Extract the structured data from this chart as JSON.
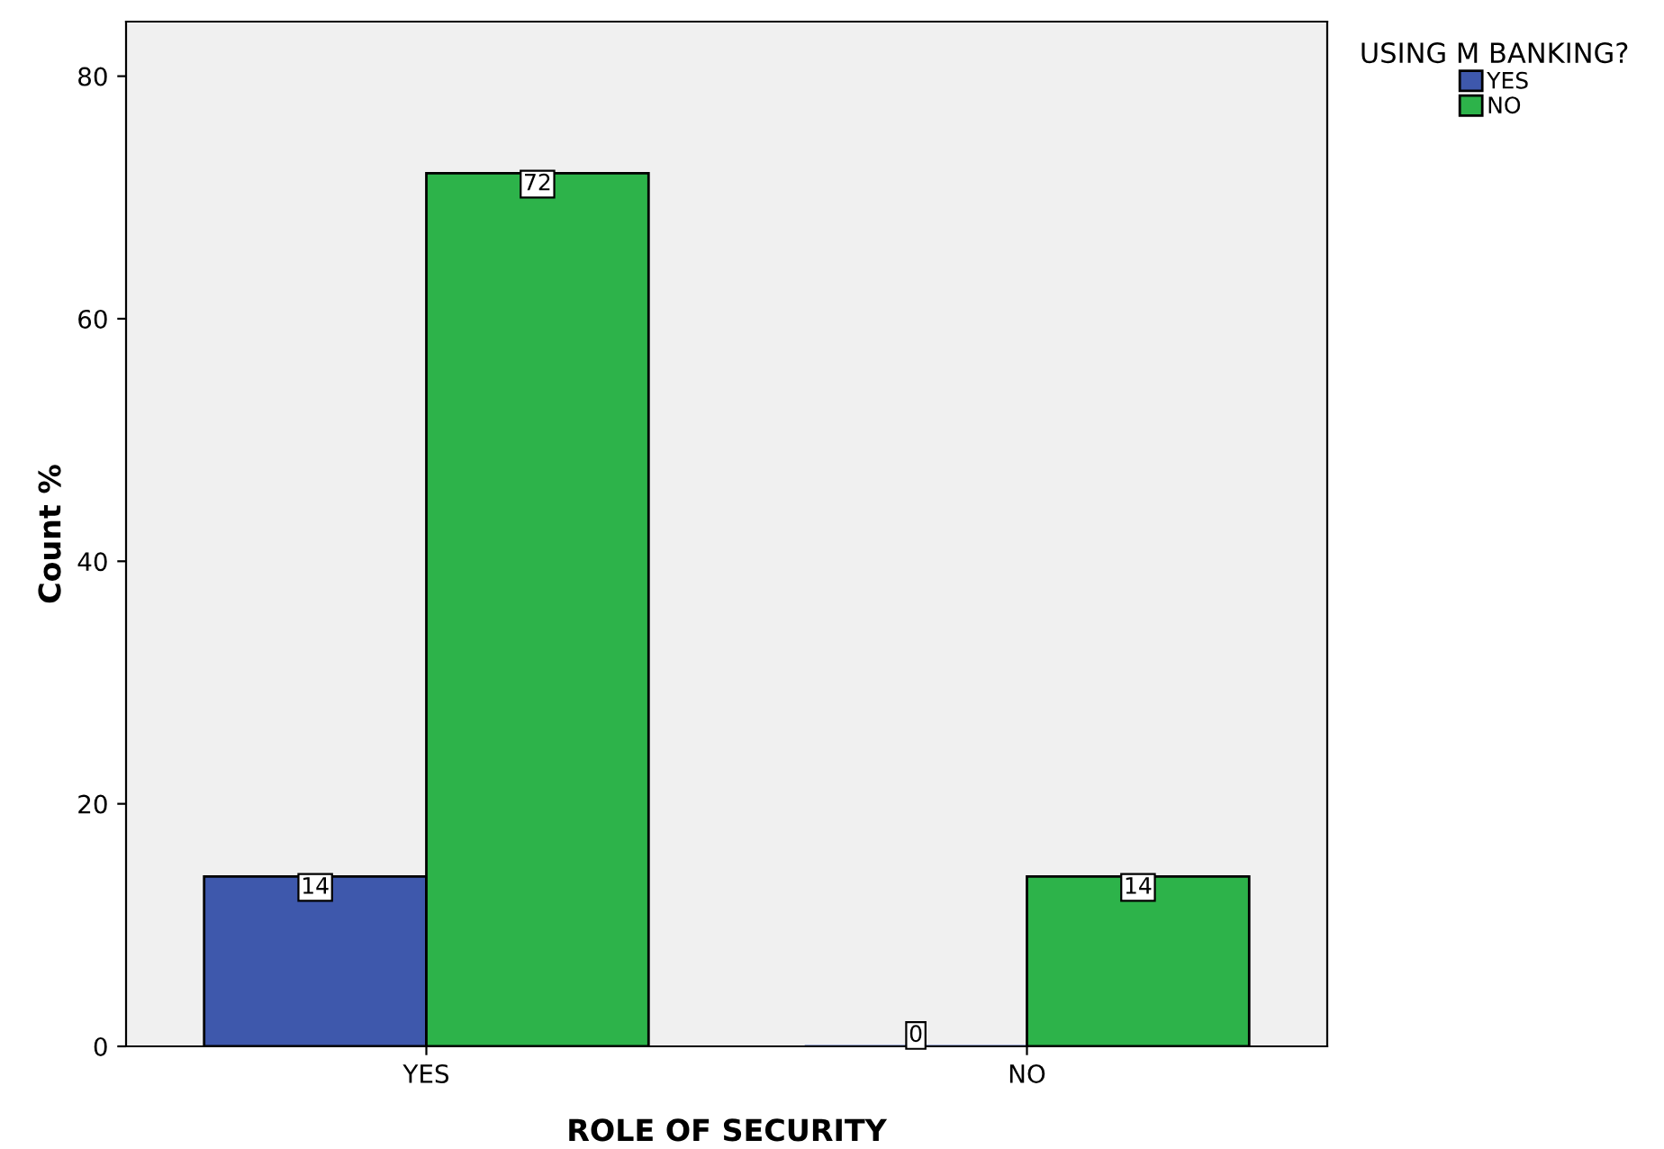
{
  "chart_data": {
    "type": "bar",
    "xlabel": "ROLE OF SECURITY",
    "ylabel": "Count %",
    "legend_title": "USING M BANKING?",
    "categories": [
      "YES",
      "NO"
    ],
    "series": [
      {
        "name": "YES",
        "color": "#3e58ac",
        "values": [
          14,
          0
        ]
      },
      {
        "name": "NO",
        "color": "#2db34a",
        "values": [
          72,
          14
        ]
      }
    ],
    "ylim": [
      0,
      84.5
    ],
    "yticks": [
      0,
      20,
      40,
      60,
      80
    ],
    "grid": false,
    "legend": "top right",
    "data_labels": true
  }
}
